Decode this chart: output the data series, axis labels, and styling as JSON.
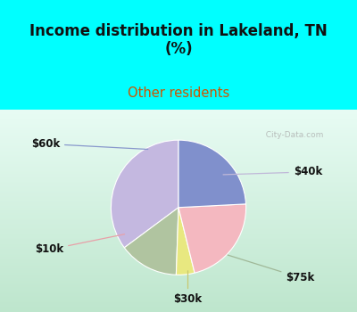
{
  "title": "Income distribution in Lakeland, TN\n(%)",
  "subtitle": "Other residents",
  "slices": [
    {
      "label": "$40k",
      "value": 32,
      "color": "#c4b8e0"
    },
    {
      "label": "$75k",
      "value": 13,
      "color": "#b0c4a0"
    },
    {
      "label": "$30k",
      "value": 4,
      "color": "#e8e880"
    },
    {
      "label": "$10k",
      "value": 20,
      "color": "#f4b8c0"
    },
    {
      "label": "$60k",
      "value": 22,
      "color": "#8090cc"
    }
  ],
  "startangle": 90,
  "title_color": "#111111",
  "subtitle_color": "#cc5500",
  "bg_top_color": "#00ffff",
  "bg_chart_color_top": "#e8f8f0",
  "bg_chart_color_bottom": "#c8ecd8",
  "watermark": "City-Data.com",
  "label_font_size": 8.5,
  "title_font_size": 12
}
